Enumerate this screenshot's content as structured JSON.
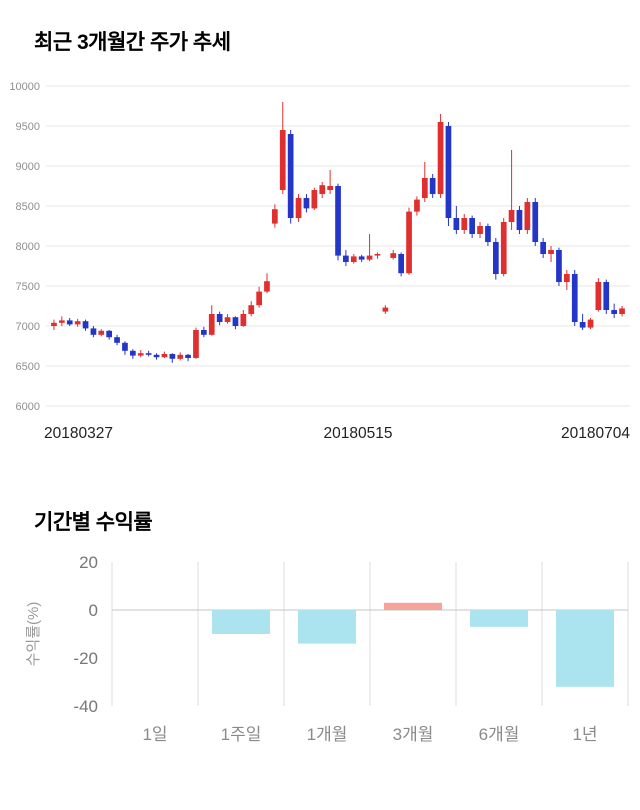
{
  "price_section": {
    "title": "최근 3개월간 주가 추세"
  },
  "returns_section": {
    "title": "기간별 수익률"
  },
  "chart_data": [
    {
      "type": "candlestick",
      "title": "최근 3개월간 주가 추세",
      "ylim": [
        6000,
        10000
      ],
      "yticks": [
        10000,
        9500,
        9000,
        8500,
        8000,
        7500,
        7000,
        6500,
        6000
      ],
      "xtick_labels": [
        "20180327",
        "20180515",
        "20180704"
      ],
      "up_color": "#e02f2f",
      "down_color": "#2336c8",
      "grid": true,
      "candles": [
        [
          7000,
          7080,
          6950,
          7040
        ],
        [
          7040,
          7120,
          7000,
          7070
        ],
        [
          7070,
          7100,
          7000,
          7020
        ],
        [
          7020,
          7090,
          6990,
          7060
        ],
        [
          7060,
          7080,
          6940,
          6970
        ],
        [
          6970,
          7000,
          6860,
          6890
        ],
        [
          6890,
          6960,
          6870,
          6940
        ],
        [
          6940,
          6950,
          6830,
          6860
        ],
        [
          6860,
          6890,
          6760,
          6790
        ],
        [
          6790,
          6810,
          6640,
          6690
        ],
        [
          6690,
          6710,
          6590,
          6630
        ],
        [
          6630,
          6700,
          6610,
          6660
        ],
        [
          6660,
          6690,
          6620,
          6640
        ],
        [
          6640,
          6660,
          6580,
          6610
        ],
        [
          6610,
          6680,
          6600,
          6650
        ],
        [
          6650,
          6660,
          6540,
          6590
        ],
        [
          6590,
          6670,
          6570,
          6640
        ],
        [
          6640,
          6650,
          6560,
          6600
        ],
        [
          6600,
          6980,
          6590,
          6950
        ],
        [
          6950,
          6990,
          6860,
          6890
        ],
        [
          6890,
          7260,
          6880,
          7150
        ],
        [
          7150,
          7180,
          7010,
          7050
        ],
        [
          7050,
          7150,
          7030,
          7110
        ],
        [
          7110,
          7120,
          6960,
          7000
        ],
        [
          7000,
          7200,
          6990,
          7150
        ],
        [
          7150,
          7310,
          7120,
          7260
        ],
        [
          7260,
          7490,
          7230,
          7430
        ],
        [
          7430,
          7660,
          7410,
          7560
        ],
        [
          8280,
          8520,
          8230,
          8460
        ],
        [
          8700,
          9800,
          8650,
          9450
        ],
        [
          9400,
          9450,
          8280,
          8350
        ],
        [
          8350,
          8650,
          8300,
          8600
        ],
        [
          8600,
          8650,
          8420,
          8470
        ],
        [
          8470,
          8730,
          8450,
          8700
        ],
        [
          8650,
          8800,
          8600,
          8760
        ],
        [
          8700,
          8950,
          8650,
          8750
        ],
        [
          8750,
          8780,
          7820,
          7880
        ],
        [
          7880,
          7950,
          7750,
          7800
        ],
        [
          7800,
          7900,
          7780,
          7870
        ],
        [
          7870,
          7890,
          7800,
          7830
        ],
        [
          7830,
          8150,
          7810,
          7880
        ],
        [
          7880,
          7920,
          7840,
          7900
        ],
        [
          7180,
          7260,
          7150,
          7230
        ],
        [
          7850,
          7950,
          7830,
          7910
        ],
        [
          7900,
          7920,
          7620,
          7660
        ],
        [
          7660,
          8480,
          7640,
          8430
        ],
        [
          8430,
          8620,
          8380,
          8580
        ],
        [
          8600,
          9050,
          8550,
          8850
        ],
        [
          8850,
          8900,
          8600,
          8650
        ],
        [
          8650,
          9650,
          8600,
          9550
        ],
        [
          9500,
          9550,
          8250,
          8350
        ],
        [
          8350,
          8500,
          8150,
          8200
        ],
        [
          8200,
          8400,
          8150,
          8350
        ],
        [
          8350,
          8380,
          8100,
          8150
        ],
        [
          8150,
          8300,
          8100,
          8250
        ],
        [
          8250,
          8280,
          8000,
          8050
        ],
        [
          8050,
          8100,
          7580,
          7650
        ],
        [
          7650,
          8350,
          7620,
          8300
        ],
        [
          8300,
          9200,
          8200,
          8450
        ],
        [
          8450,
          8500,
          8150,
          8200
        ],
        [
          8200,
          8600,
          8150,
          8550
        ],
        [
          8550,
          8600,
          8000,
          8050
        ],
        [
          8050,
          8100,
          7850,
          7900
        ],
        [
          7900,
          8000,
          7800,
          7950
        ],
        [
          7950,
          7980,
          7500,
          7550
        ],
        [
          7550,
          7700,
          7450,
          7650
        ],
        [
          7650,
          7700,
          7000,
          7050
        ],
        [
          7050,
          7150,
          6950,
          6980
        ],
        [
          6980,
          7100,
          6960,
          7080
        ],
        [
          7200,
          7600,
          7180,
          7550
        ],
        [
          7550,
          7580,
          7150,
          7200
        ],
        [
          7200,
          7280,
          7100,
          7150
        ],
        [
          7150,
          7250,
          7120,
          7220
        ]
      ]
    },
    {
      "type": "bar",
      "title": "기간별 수익률",
      "ylabel": "수익률(%)",
      "categories": [
        "1일",
        "1주일",
        "1개월",
        "3개월",
        "6개월",
        "1년"
      ],
      "values": [
        0,
        -10,
        -14,
        3,
        -7,
        -32
      ],
      "ylim": [
        -40,
        20
      ],
      "yticks": [
        20,
        0,
        -20,
        -40
      ],
      "bar_colors": [
        "#abe3ef",
        "#abe3ef",
        "#abe3ef",
        "#f5a49b",
        "#abe3ef",
        "#abe3ef"
      ],
      "grid": "vertical"
    }
  ]
}
